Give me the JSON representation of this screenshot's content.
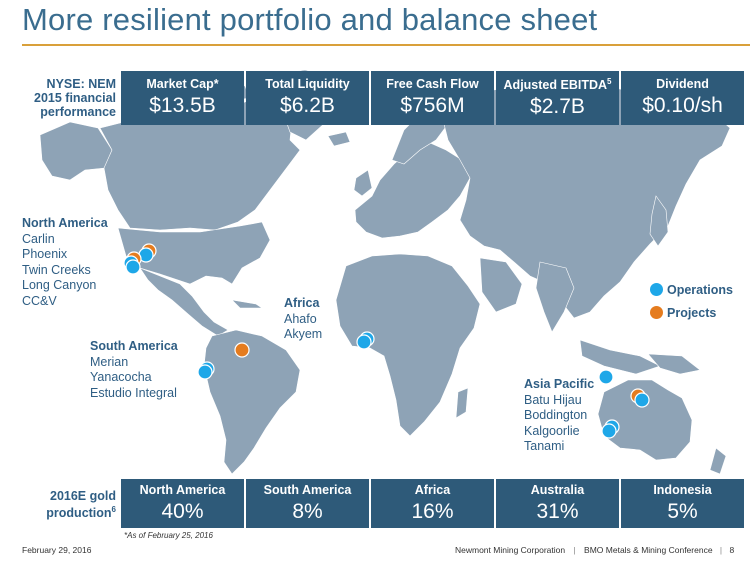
{
  "title": "More resilient portfolio and balance sheet",
  "colors": {
    "box": "#2e5a79",
    "land": "#8ea3b6",
    "operations": "#1ea7e8",
    "projects": "#e57c1f",
    "accent": "#d9a03a"
  },
  "performance": {
    "label_lines": [
      "NYSE: NEM",
      "2015 financial",
      "performance"
    ],
    "metrics": [
      {
        "label": "Market Cap*",
        "value": "$13.5B"
      },
      {
        "label": "Total Liquidity",
        "value": "$6.2B"
      },
      {
        "label": "Free Cash Flow",
        "value": "$756M"
      },
      {
        "label": "Adjusted EBITDA",
        "label_sup": "5",
        "value": "$2.7B"
      },
      {
        "label": "Dividend",
        "value": "$0.10/sh"
      }
    ]
  },
  "regions": {
    "north_america": {
      "title": "North America",
      "sites": [
        "Carlin",
        "Phoenix",
        "Twin Creeks",
        "Long Canyon",
        "CC&V"
      ]
    },
    "south_america": {
      "title": "South America",
      "sites": [
        "Merian",
        "Yanacocha",
        "Estudio Integral"
      ]
    },
    "africa": {
      "title": "Africa",
      "sites": [
        "Ahafo",
        "Akyem"
      ]
    },
    "asia_pacific": {
      "title": "Asia Pacific",
      "sites": [
        "Batu Hijau",
        "Boddington",
        "Kalgoorlie",
        "Tanami"
      ]
    }
  },
  "legend": {
    "operations": "Operations",
    "projects": "Projects"
  },
  "production": {
    "label_lines": [
      "2016E gold",
      "production"
    ],
    "label_sup": "6",
    "items": [
      {
        "label": "North America",
        "value": "40%"
      },
      {
        "label": "South America",
        "value": "8%"
      },
      {
        "label": "Africa",
        "value": "16%"
      },
      {
        "label": "Australia",
        "value": "31%"
      },
      {
        "label": "Indonesia",
        "value": "5%"
      }
    ]
  },
  "footnote": "*As of February 25, 2016",
  "footer": {
    "date": "February 29,  2016",
    "company": "Newmont Mining Corporation",
    "conference": "BMO Metals & Mining Conference",
    "page": "8"
  }
}
